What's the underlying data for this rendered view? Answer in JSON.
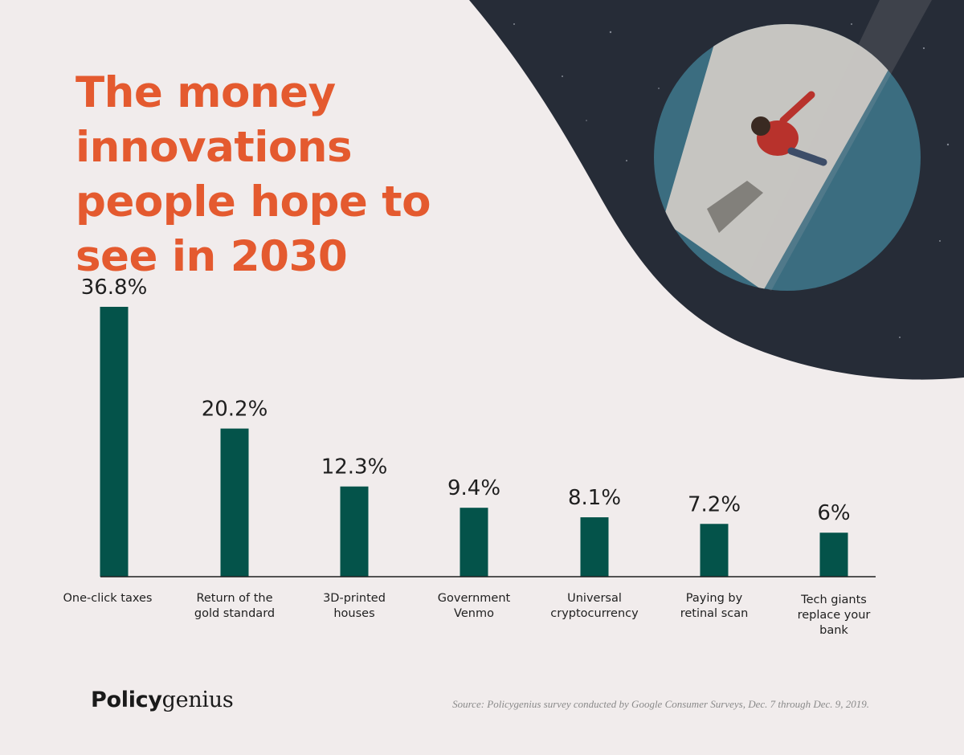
{
  "title": "The money innovations people hope to see in 2030",
  "brand": {
    "part1": "Policy",
    "part2": "genius"
  },
  "source": "Source: Policygenius survey conducted by Google Consumer Surveys, Dec. 7 through Dec. 9, 2019.",
  "colors": {
    "title": "#e45a2f",
    "bar": "#04534a",
    "background": "#f1ecec",
    "text": "#1f1f1f"
  },
  "chart_data": {
    "type": "bar",
    "title": "",
    "xlabel": "",
    "ylabel": "",
    "ylim": [
      0,
      36.8
    ],
    "grid": false,
    "categories": [
      [
        "One-click taxes"
      ],
      [
        "Return of the",
        "gold standard"
      ],
      [
        "3D-printed",
        "houses"
      ],
      [
        "Government",
        "Venmo"
      ],
      [
        "Universal",
        "cryptocurrency"
      ],
      [
        "Paying by",
        "retinal scan"
      ],
      [
        "Tech giants",
        "replace your",
        "bank"
      ]
    ],
    "values": [
      36.8,
      20.2,
      12.3,
      9.4,
      8.1,
      7.2,
      6
    ],
    "value_labels": [
      "36.8%",
      "20.2%",
      "12.3%",
      "9.4%",
      "8.1%",
      "7.2%",
      "6%"
    ]
  }
}
